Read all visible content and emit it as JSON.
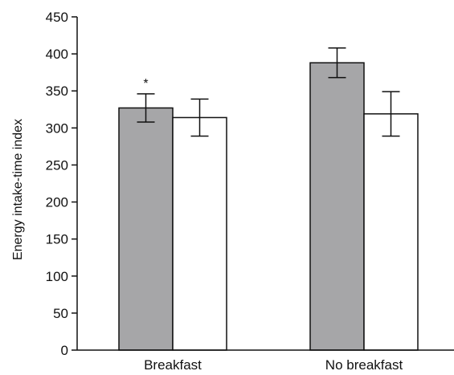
{
  "chart_data": {
    "type": "bar",
    "title": "",
    "xlabel": "",
    "ylabel": "Energy intake-time index",
    "categories": [
      "Breakfast",
      "No breakfast"
    ],
    "series": [
      {
        "color": "#a6a6a8",
        "values": [
          327,
          388
        ],
        "error": [
          19,
          20
        ]
      },
      {
        "color": "#ffffff",
        "values": [
          314,
          319
        ],
        "error": [
          25,
          30
        ]
      }
    ],
    "ylim": [
      0,
      450
    ],
    "yticks": [
      0,
      50,
      100,
      150,
      200,
      250,
      300,
      350,
      400,
      450
    ],
    "grid": false,
    "legend": "none",
    "annotations": [
      {
        "text": "*",
        "category": "Breakfast",
        "series": 0
      }
    ]
  }
}
